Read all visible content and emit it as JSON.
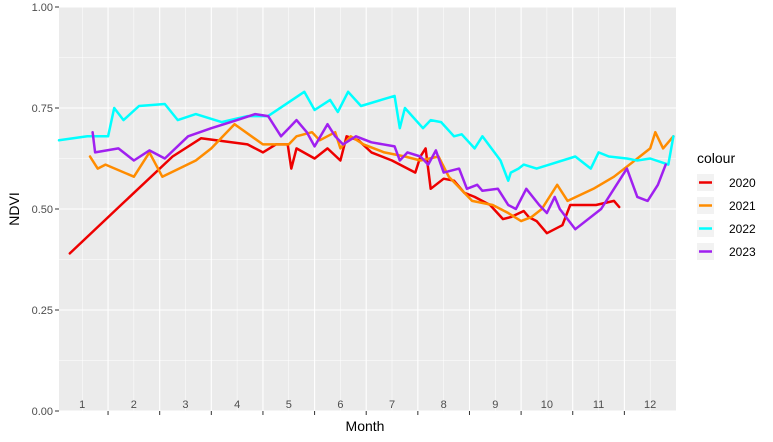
{
  "chart_data": {
    "type": "line",
    "xlabel": "Month",
    "ylabel": "NDVI",
    "xlim": [
      0.55,
      12.5
    ],
    "ylim": [
      0,
      1
    ],
    "y_ticks": [
      "0.00",
      "0.25",
      "0.50",
      "0.75",
      "1.00"
    ],
    "month_labels": [
      "1",
      "2",
      "3",
      "4",
      "5",
      "6",
      "7",
      "8",
      "9",
      "10",
      "11",
      "12"
    ],
    "grid": true,
    "legend": {
      "title": "colour",
      "position": "right"
    },
    "series": [
      {
        "name": "2020",
        "color": "#ee0000",
        "points": [
          [
            0.76,
            0.39
          ],
          [
            1.75,
            0.51
          ],
          [
            2.75,
            0.63
          ],
          [
            3.3,
            0.675
          ],
          [
            4.2,
            0.66
          ],
          [
            4.5,
            0.64
          ],
          [
            4.75,
            0.66
          ],
          [
            4.98,
            0.66
          ],
          [
            5.05,
            0.6
          ],
          [
            5.15,
            0.65
          ],
          [
            5.5,
            0.625
          ],
          [
            5.75,
            0.65
          ],
          [
            6.0,
            0.62
          ],
          [
            6.12,
            0.68
          ],
          [
            6.35,
            0.67
          ],
          [
            6.6,
            0.64
          ],
          [
            7.0,
            0.62
          ],
          [
            7.45,
            0.59
          ],
          [
            7.55,
            0.63
          ],
          [
            7.65,
            0.65
          ],
          [
            7.75,
            0.55
          ],
          [
            8.0,
            0.575
          ],
          [
            8.2,
            0.57
          ],
          [
            8.4,
            0.54
          ],
          [
            8.6,
            0.53
          ],
          [
            8.9,
            0.51
          ],
          [
            9.15,
            0.475
          ],
          [
            9.3,
            0.48
          ],
          [
            9.55,
            0.495
          ],
          [
            9.65,
            0.48
          ],
          [
            9.8,
            0.47
          ],
          [
            10.0,
            0.44
          ],
          [
            10.3,
            0.46
          ],
          [
            10.45,
            0.51
          ],
          [
            10.95,
            0.51
          ],
          [
            11.3,
            0.52
          ],
          [
            11.4,
            0.505
          ]
        ]
      },
      {
        "name": "2021",
        "color": "#ff8c00",
        "points": [
          [
            1.15,
            0.63
          ],
          [
            1.3,
            0.6
          ],
          [
            1.45,
            0.61
          ],
          [
            2.0,
            0.58
          ],
          [
            2.3,
            0.64
          ],
          [
            2.55,
            0.58
          ],
          [
            3.2,
            0.62
          ],
          [
            3.5,
            0.65
          ],
          [
            3.95,
            0.71
          ],
          [
            4.5,
            0.66
          ],
          [
            5.0,
            0.66
          ],
          [
            5.15,
            0.68
          ],
          [
            5.45,
            0.69
          ],
          [
            5.6,
            0.67
          ],
          [
            5.9,
            0.69
          ],
          [
            6.0,
            0.65
          ],
          [
            6.2,
            0.68
          ],
          [
            6.45,
            0.66
          ],
          [
            6.85,
            0.64
          ],
          [
            7.25,
            0.63
          ],
          [
            7.55,
            0.62
          ],
          [
            7.9,
            0.63
          ],
          [
            8.1,
            0.58
          ],
          [
            8.25,
            0.56
          ],
          [
            8.55,
            0.52
          ],
          [
            8.95,
            0.51
          ],
          [
            9.25,
            0.49
          ],
          [
            9.5,
            0.47
          ],
          [
            9.7,
            0.48
          ],
          [
            9.9,
            0.5
          ],
          [
            10.2,
            0.56
          ],
          [
            10.4,
            0.52
          ],
          [
            10.9,
            0.55
          ],
          [
            11.3,
            0.58
          ],
          [
            11.8,
            0.63
          ],
          [
            12.0,
            0.65
          ],
          [
            12.1,
            0.69
          ],
          [
            12.25,
            0.65
          ],
          [
            12.45,
            0.68
          ]
        ]
      },
      {
        "name": "2022",
        "color": "#00ffff",
        "points": [
          [
            0.55,
            0.67
          ],
          [
            1.1,
            0.68
          ],
          [
            1.5,
            0.68
          ],
          [
            1.62,
            0.75
          ],
          [
            1.8,
            0.72
          ],
          [
            2.1,
            0.755
          ],
          [
            2.6,
            0.76
          ],
          [
            2.85,
            0.72
          ],
          [
            3.2,
            0.735
          ],
          [
            3.7,
            0.715
          ],
          [
            4.2,
            0.73
          ],
          [
            4.6,
            0.73
          ],
          [
            5.3,
            0.79
          ],
          [
            5.5,
            0.745
          ],
          [
            5.8,
            0.77
          ],
          [
            5.95,
            0.74
          ],
          [
            6.15,
            0.79
          ],
          [
            6.4,
            0.755
          ],
          [
            7.05,
            0.78
          ],
          [
            7.15,
            0.7
          ],
          [
            7.25,
            0.75
          ],
          [
            7.6,
            0.7
          ],
          [
            7.75,
            0.72
          ],
          [
            7.95,
            0.715
          ],
          [
            8.2,
            0.68
          ],
          [
            8.35,
            0.685
          ],
          [
            8.6,
            0.65
          ],
          [
            8.75,
            0.68
          ],
          [
            9.1,
            0.62
          ],
          [
            9.25,
            0.57
          ],
          [
            9.3,
            0.59
          ],
          [
            9.45,
            0.6
          ],
          [
            9.55,
            0.61
          ],
          [
            9.8,
            0.6
          ],
          [
            10.05,
            0.61
          ],
          [
            10.55,
            0.63
          ],
          [
            10.85,
            0.6
          ],
          [
            11.0,
            0.64
          ],
          [
            11.2,
            0.63
          ],
          [
            11.55,
            0.625
          ],
          [
            11.75,
            0.62
          ],
          [
            12.0,
            0.625
          ],
          [
            12.35,
            0.61
          ],
          [
            12.45,
            0.68
          ]
        ]
      },
      {
        "name": "2023",
        "color": "#a020f0",
        "points": [
          [
            1.2,
            0.69
          ],
          [
            1.25,
            0.64
          ],
          [
            1.7,
            0.65
          ],
          [
            2.0,
            0.62
          ],
          [
            2.3,
            0.645
          ],
          [
            2.6,
            0.625
          ],
          [
            3.05,
            0.68
          ],
          [
            3.5,
            0.7
          ],
          [
            4.0,
            0.72
          ],
          [
            4.35,
            0.735
          ],
          [
            4.6,
            0.73
          ],
          [
            4.85,
            0.68
          ],
          [
            5.0,
            0.7
          ],
          [
            5.15,
            0.72
          ],
          [
            5.35,
            0.69
          ],
          [
            5.5,
            0.655
          ],
          [
            5.75,
            0.71
          ],
          [
            5.9,
            0.68
          ],
          [
            6.05,
            0.66
          ],
          [
            6.3,
            0.68
          ],
          [
            6.6,
            0.665
          ],
          [
            7.05,
            0.655
          ],
          [
            7.15,
            0.62
          ],
          [
            7.3,
            0.64
          ],
          [
            7.55,
            0.63
          ],
          [
            7.7,
            0.61
          ],
          [
            7.85,
            0.645
          ],
          [
            8.0,
            0.59
          ],
          [
            8.3,
            0.6
          ],
          [
            8.45,
            0.55
          ],
          [
            8.65,
            0.56
          ],
          [
            8.75,
            0.545
          ],
          [
            9.05,
            0.55
          ],
          [
            9.25,
            0.51
          ],
          [
            9.4,
            0.5
          ],
          [
            9.6,
            0.55
          ],
          [
            9.85,
            0.51
          ],
          [
            10.0,
            0.49
          ],
          [
            10.15,
            0.53
          ],
          [
            10.25,
            0.5
          ],
          [
            10.55,
            0.45
          ],
          [
            11.05,
            0.5
          ],
          [
            11.3,
            0.55
          ],
          [
            11.55,
            0.6
          ],
          [
            11.75,
            0.53
          ],
          [
            11.95,
            0.52
          ],
          [
            12.15,
            0.56
          ],
          [
            12.3,
            0.61
          ]
        ]
      }
    ]
  }
}
